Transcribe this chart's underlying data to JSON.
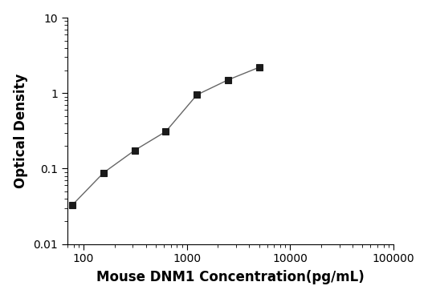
{
  "x": [
    78,
    156,
    313,
    625,
    1250,
    2500,
    5000
  ],
  "y": [
    0.033,
    0.088,
    0.175,
    0.31,
    0.95,
    1.5,
    2.2
  ],
  "xlim": [
    70,
    100000
  ],
  "ylim": [
    0.01,
    10
  ],
  "xlabel": "Mouse DNM1 Concentration(pg/mL)",
  "ylabel": "Optical Density",
  "line_color": "#666666",
  "marker": "s",
  "marker_color": "#1a1a1a",
  "marker_size": 5.5,
  "background_color": "#ffffff",
  "tick_label_fontsize": 10,
  "axis_label_fontsize": 12,
  "ytick_labels": [
    "0.01",
    "0.1",
    "1",
    "10"
  ],
  "ytick_values": [
    0.01,
    0.1,
    1,
    10
  ],
  "xtick_values": [
    100,
    1000,
    10000,
    100000
  ],
  "xtick_labels": [
    "100",
    "1000",
    "10000",
    "100000"
  ]
}
